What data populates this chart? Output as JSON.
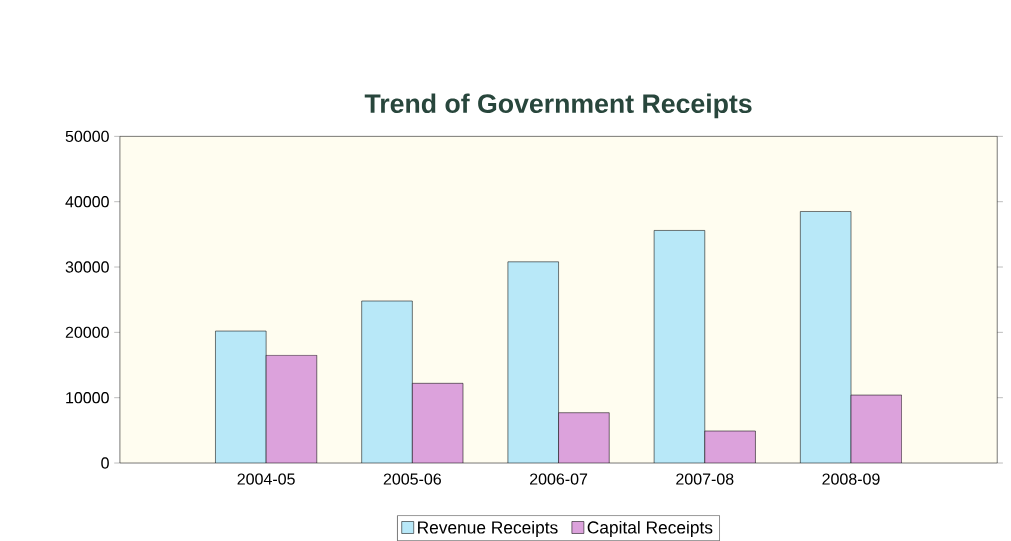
{
  "chart_data": {
    "type": "bar",
    "title": "Trend of Government Receipts",
    "categories": [
      "2004-05",
      "2005-06",
      "2006-07",
      "2007-08",
      "2008-09"
    ],
    "series": [
      {
        "name": "Revenue Receipts",
        "color": "#b8e8f8",
        "values": [
          20200,
          24800,
          30800,
          35600,
          38500
        ]
      },
      {
        "name": "Capital Receipts",
        "color": "#dca2dc",
        "values": [
          16500,
          12200,
          7700,
          4900,
          10400
        ]
      }
    ],
    "ylim": [
      0,
      50000
    ],
    "yticks": [
      0,
      10000,
      20000,
      30000,
      40000,
      50000
    ],
    "grid": false,
    "legend": "bottom"
  }
}
